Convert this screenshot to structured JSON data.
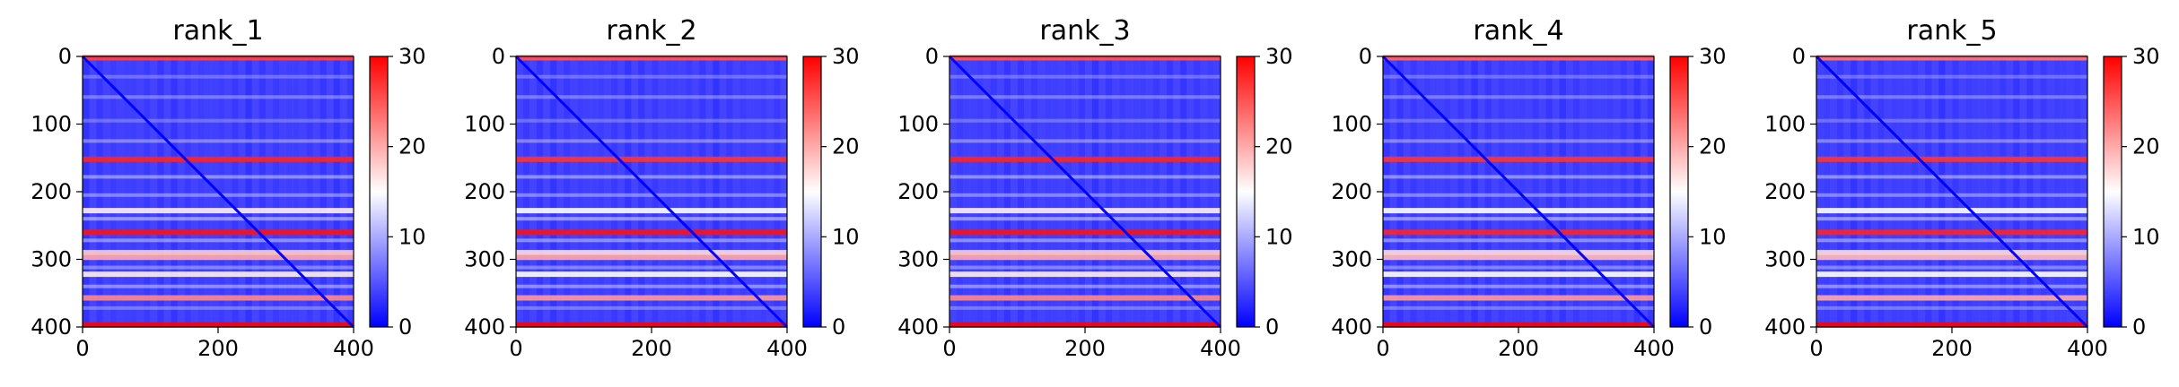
{
  "chart_data": [
    {
      "type": "heatmap",
      "title": "rank_1",
      "x_ticks": [
        "0",
        "200",
        "400"
      ],
      "y_ticks": [
        "0",
        "100",
        "200",
        "300",
        "400"
      ],
      "colorbar_ticks": [
        "0",
        "10",
        "20",
        "30"
      ],
      "xlim": [
        0,
        400
      ],
      "ylim": [
        400,
        0
      ],
      "value_range": [
        0,
        30
      ],
      "colormap": [
        "#0000ff",
        "#ffffff",
        "#ff0000"
      ],
      "grid": false,
      "bright_rows": [
        {
          "y": 2,
          "value": 26
        },
        {
          "y": 152,
          "value": 28
        },
        {
          "y": 228,
          "value": 16
        },
        {
          "y": 260,
          "value": 29
        },
        {
          "y": 290,
          "value": 18
        },
        {
          "y": 297,
          "value": 20
        },
        {
          "y": 322,
          "value": 16
        },
        {
          "y": 357,
          "value": 22
        },
        {
          "y": 397,
          "value": 30
        }
      ]
    },
    {
      "type": "heatmap",
      "title": "rank_2",
      "x_ticks": [
        "0",
        "200",
        "400"
      ],
      "y_ticks": [
        "0",
        "100",
        "200",
        "300",
        "400"
      ],
      "colorbar_ticks": [
        "0",
        "10",
        "20",
        "30"
      ],
      "xlim": [
        0,
        400
      ],
      "ylim": [
        400,
        0
      ],
      "value_range": [
        0,
        30
      ],
      "colormap": [
        "#0000ff",
        "#ffffff",
        "#ff0000"
      ],
      "grid": false,
      "bright_rows": [
        {
          "y": 2,
          "value": 25
        },
        {
          "y": 152,
          "value": 27
        },
        {
          "y": 228,
          "value": 15
        },
        {
          "y": 260,
          "value": 29
        },
        {
          "y": 290,
          "value": 17
        },
        {
          "y": 297,
          "value": 20
        },
        {
          "y": 322,
          "value": 15
        },
        {
          "y": 357,
          "value": 21
        },
        {
          "y": 397,
          "value": 30
        }
      ]
    },
    {
      "type": "heatmap",
      "title": "rank_3",
      "x_ticks": [
        "0",
        "200",
        "400"
      ],
      "y_ticks": [
        "0",
        "100",
        "200",
        "300",
        "400"
      ],
      "colorbar_ticks": [
        "0",
        "10",
        "20",
        "30"
      ],
      "xlim": [
        0,
        400
      ],
      "ylim": [
        400,
        0
      ],
      "value_range": [
        0,
        30
      ],
      "colormap": [
        "#0000ff",
        "#ffffff",
        "#ff0000"
      ],
      "grid": false,
      "bright_rows": [
        {
          "y": 2,
          "value": 25
        },
        {
          "y": 152,
          "value": 28
        },
        {
          "y": 228,
          "value": 16
        },
        {
          "y": 260,
          "value": 29
        },
        {
          "y": 290,
          "value": 18
        },
        {
          "y": 297,
          "value": 20
        },
        {
          "y": 322,
          "value": 16
        },
        {
          "y": 357,
          "value": 22
        },
        {
          "y": 397,
          "value": 30
        }
      ]
    },
    {
      "type": "heatmap",
      "title": "rank_4",
      "x_ticks": [
        "0",
        "200",
        "400"
      ],
      "y_ticks": [
        "0",
        "100",
        "200",
        "300",
        "400"
      ],
      "colorbar_ticks": [
        "0",
        "10",
        "20",
        "30"
      ],
      "xlim": [
        0,
        400
      ],
      "ylim": [
        400,
        0
      ],
      "value_range": [
        0,
        30
      ],
      "colormap": [
        "#0000ff",
        "#ffffff",
        "#ff0000"
      ],
      "grid": false,
      "bright_rows": [
        {
          "y": 2,
          "value": 24
        },
        {
          "y": 152,
          "value": 27
        },
        {
          "y": 228,
          "value": 15
        },
        {
          "y": 260,
          "value": 28
        },
        {
          "y": 290,
          "value": 17
        },
        {
          "y": 297,
          "value": 19
        },
        {
          "y": 322,
          "value": 15
        },
        {
          "y": 357,
          "value": 21
        },
        {
          "y": 397,
          "value": 30
        }
      ]
    },
    {
      "type": "heatmap",
      "title": "rank_5",
      "x_ticks": [
        "0",
        "200",
        "400"
      ],
      "y_ticks": [
        "0",
        "100",
        "200",
        "300",
        "400"
      ],
      "colorbar_ticks": [
        "0",
        "10",
        "20",
        "30"
      ],
      "xlim": [
        0,
        400
      ],
      "ylim": [
        400,
        0
      ],
      "value_range": [
        0,
        30
      ],
      "colormap": [
        "#0000ff",
        "#ffffff",
        "#ff0000"
      ],
      "grid": false,
      "bright_rows": [
        {
          "y": 2,
          "value": 23
        },
        {
          "y": 152,
          "value": 27
        },
        {
          "y": 228,
          "value": 15
        },
        {
          "y": 260,
          "value": 28
        },
        {
          "y": 290,
          "value": 17
        },
        {
          "y": 297,
          "value": 19
        },
        {
          "y": 322,
          "value": 15
        },
        {
          "y": 357,
          "value": 20
        },
        {
          "y": 397,
          "value": 30
        }
      ]
    }
  ]
}
